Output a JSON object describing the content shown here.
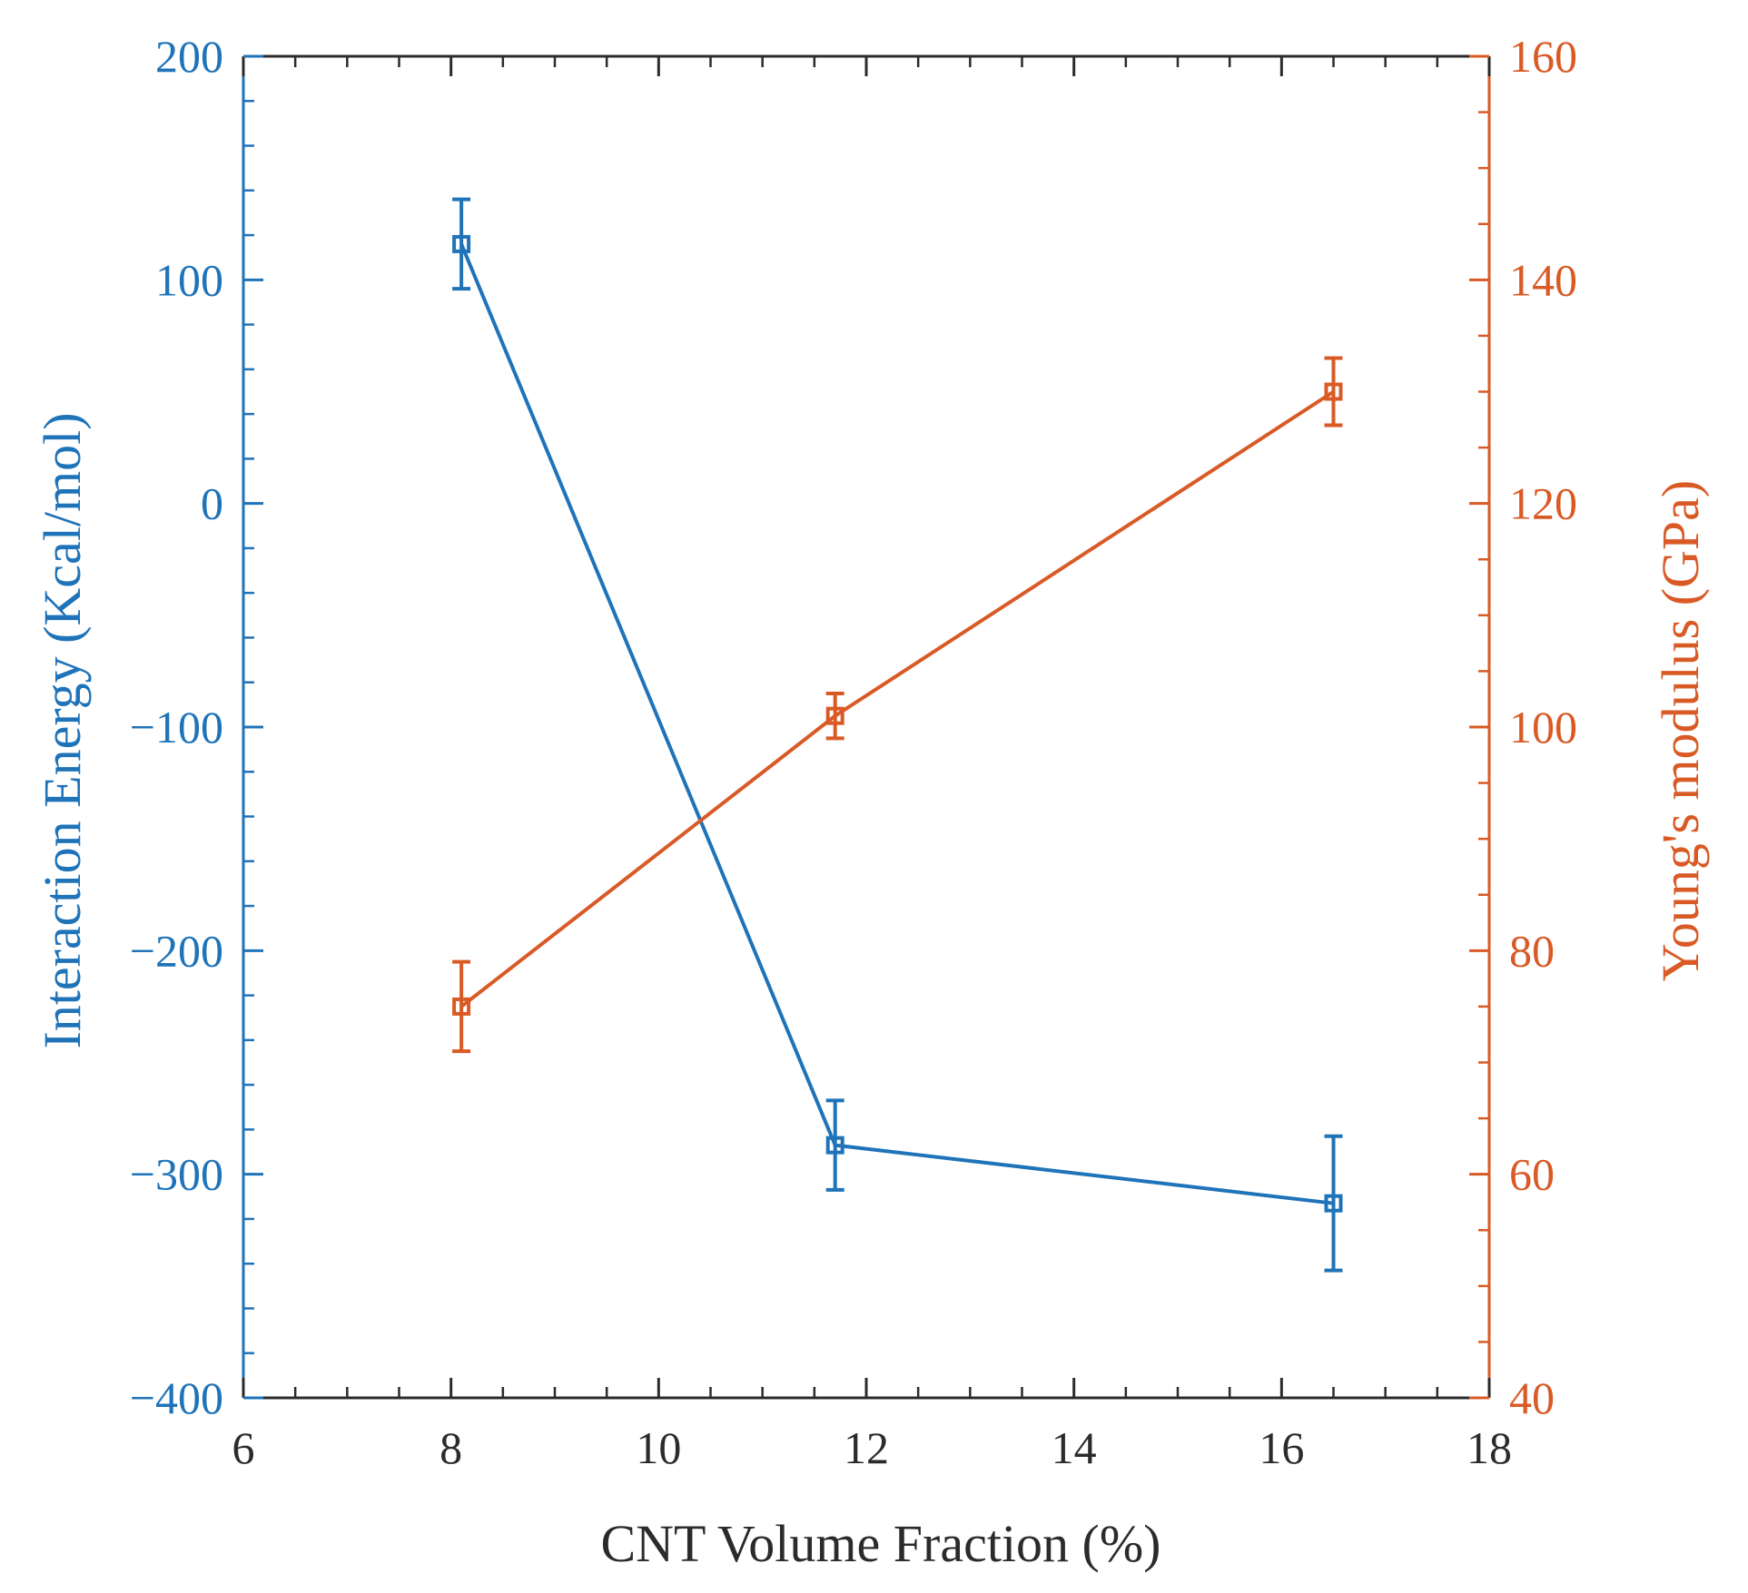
{
  "chart_data": {
    "type": "line",
    "title": "",
    "xlabel": "CNT Volume Fraction (%)",
    "xlim": [
      6,
      18
    ],
    "xticks": [
      6,
      8,
      10,
      12,
      14,
      16,
      18
    ],
    "x_tick_labels": [
      "6",
      "8",
      "10",
      "12",
      "14",
      "16",
      "18"
    ],
    "left_axis": {
      "label": "Interaction Energy (Kcal/mol)",
      "ylim": [
        -400,
        200
      ],
      "ticks": [
        -400,
        -300,
        -200,
        -100,
        0,
        100,
        200
      ],
      "tick_labels": [
        "−400",
        "−300",
        "−200",
        "−100",
        "0",
        "100",
        "200"
      ],
      "color": "#1f73b8"
    },
    "right_axis": {
      "label": "Young's modulus (GPa)",
      "ylim": [
        40,
        160
      ],
      "ticks": [
        40,
        60,
        80,
        100,
        120,
        140,
        160
      ],
      "tick_labels": [
        "40",
        "60",
        "80",
        "100",
        "120",
        "140",
        "160"
      ],
      "color": "#d95a25"
    },
    "series": [
      {
        "name": "Interaction Energy",
        "axis": "left",
        "color": "#1f73b8",
        "x": [
          8.1,
          11.7,
          16.5
        ],
        "y": [
          116,
          -287,
          -313
        ],
        "err": [
          20,
          20,
          30
        ]
      },
      {
        "name": "Young's modulus",
        "axis": "right",
        "color": "#d95a25",
        "x": [
          8.1,
          11.7,
          16.5
        ],
        "y": [
          75,
          101,
          130
        ],
        "err": [
          4,
          2,
          3
        ]
      }
    ]
  }
}
